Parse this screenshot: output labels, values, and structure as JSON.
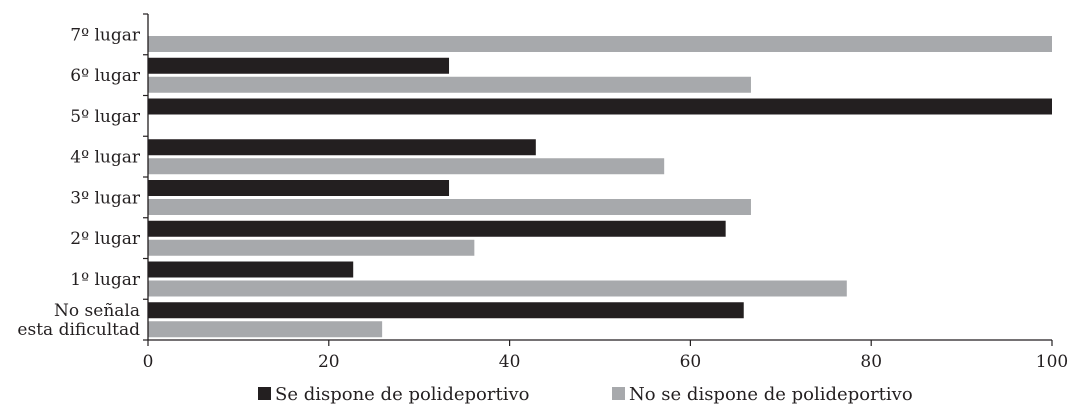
{
  "chart_data": {
    "type": "bar",
    "orientation": "horizontal",
    "categories": [
      "7º lugar",
      "6º lugar",
      "5º lugar",
      "4º lugar",
      "3º lugar",
      "2º lugar",
      "1º lugar",
      "No señala esta dificultad"
    ],
    "category_lines": [
      [
        "7º lugar"
      ],
      [
        "6º lugar"
      ],
      [
        "5º lugar"
      ],
      [
        "4º lugar"
      ],
      [
        "3º lugar"
      ],
      [
        "2º lugar"
      ],
      [
        "1º lugar"
      ],
      [
        "No señala",
        "esta dificultad"
      ]
    ],
    "series": [
      {
        "name": "Se dispone de polideportivo",
        "color": "#231f20",
        "values": [
          0,
          33.3,
          100,
          42.9,
          33.3,
          63.9,
          22.7,
          65.9
        ]
      },
      {
        "name": "No se dispone de polideportivo",
        "color": "#a7a9ac",
        "values": [
          100,
          66.7,
          0,
          57.1,
          66.7,
          36.1,
          77.3,
          25.9
        ]
      }
    ],
    "xlim": [
      0,
      100
    ],
    "xticks": [
      0,
      20,
      40,
      60,
      80,
      100
    ],
    "grid": false,
    "legend_position": "bottom",
    "title": "",
    "xlabel": "",
    "ylabel": ""
  }
}
